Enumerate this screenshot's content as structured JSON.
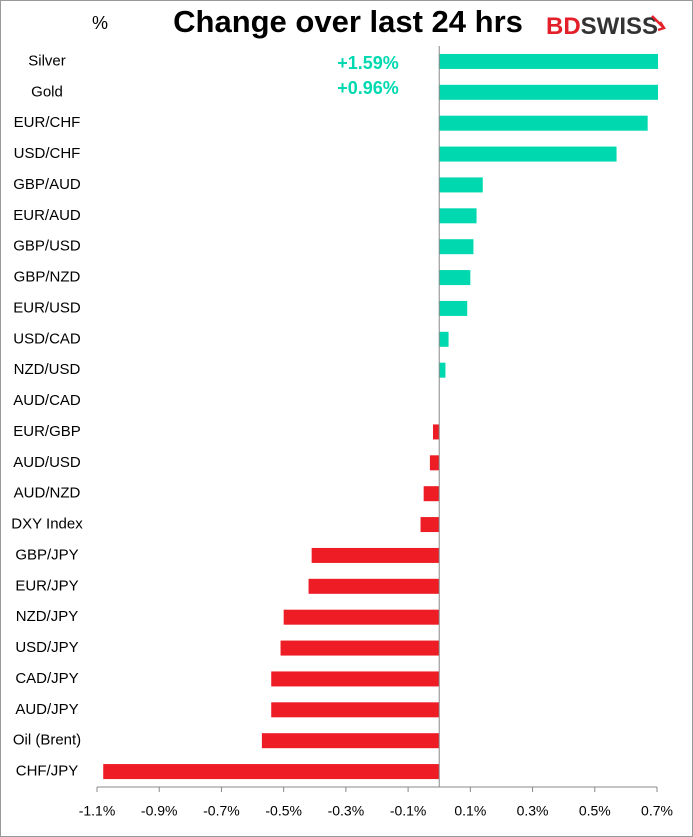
{
  "chart_data": {
    "type": "barh",
    "title": "Change over last 24 hrs",
    "unit_label": "%",
    "logo": {
      "bd": "BD",
      "swiss": "SWISS"
    },
    "categories": [
      "Silver",
      "Gold",
      "EUR/CHF",
      "USD/CHF",
      "GBP/AUD",
      "EUR/AUD",
      "GBP/USD",
      "GBP/NZD",
      "EUR/USD",
      "USD/CAD",
      "NZD/USD",
      "AUD/CAD",
      "EUR/GBP",
      "AUD/USD",
      "AUD/NZD",
      "DXY Index",
      "GBP/JPY",
      "EUR/JPY",
      "NZD/JPY",
      "USD/JPY",
      "CAD/JPY",
      "AUD/JPY",
      "Oil (Brent)",
      "CHF/JPY"
    ],
    "values": [
      1.59,
      0.96,
      0.67,
      0.57,
      0.14,
      0.12,
      0.11,
      0.1,
      0.09,
      0.03,
      0.02,
      0,
      -0.02,
      -0.03,
      -0.05,
      -0.06,
      -0.41,
      -0.42,
      -0.5,
      -0.51,
      -0.54,
      -0.54,
      -0.57,
      -1.08
    ],
    "value_labels": [
      "+1.59%",
      "+0.96%",
      null,
      null,
      null,
      null,
      null,
      null,
      null,
      null,
      null,
      null,
      null,
      null,
      null,
      null,
      null,
      null,
      null,
      null,
      null,
      null,
      null,
      null
    ],
    "positive_color": "#00d9b0",
    "negative_color": "#ee1c25",
    "xlim": [
      -1.1,
      0.7
    ],
    "xticks": [
      {
        "value": -1.1,
        "label": "-1.1%"
      },
      {
        "value": -0.9,
        "label": "-0.9%"
      },
      {
        "value": -0.7,
        "label": "-0.7%"
      },
      {
        "value": -0.5,
        "label": "-0.5%"
      },
      {
        "value": -0.3,
        "label": "-0.3%"
      },
      {
        "value": -0.1,
        "label": "-0.1%"
      },
      {
        "value": 0.1,
        "label": "0.1%"
      },
      {
        "value": 0.3,
        "label": "0.3%"
      },
      {
        "value": 0.5,
        "label": "0.5%"
      },
      {
        "value": 0.7,
        "label": "0.7%"
      }
    ]
  }
}
